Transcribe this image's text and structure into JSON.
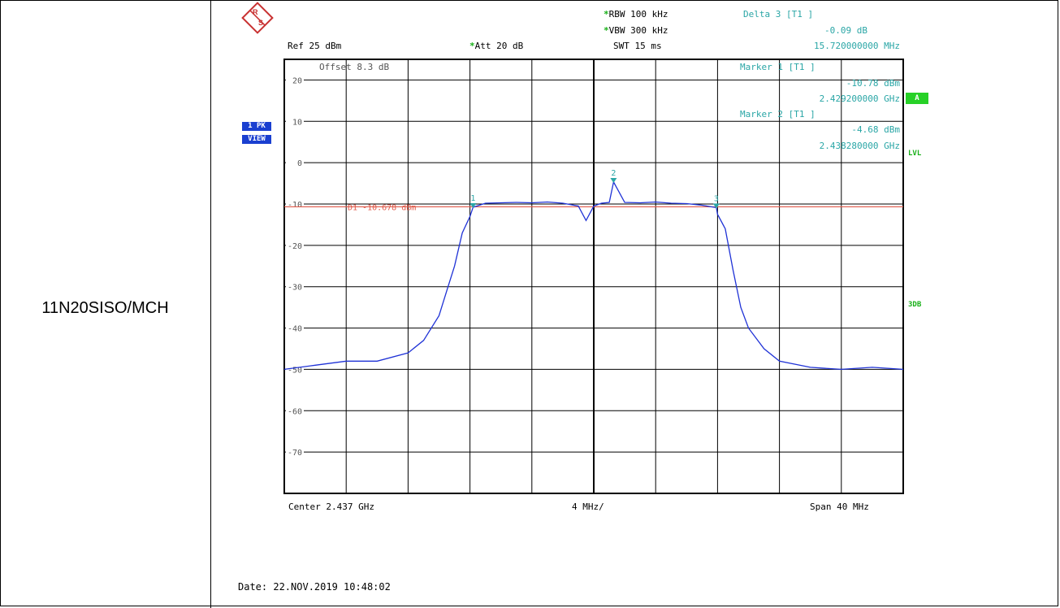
{
  "row_label": "11N20SISO/MCH",
  "header": {
    "rbw": "RBW 100 kHz",
    "vbw": "VBW 300 kHz",
    "swt": "SWT 15 ms",
    "ref": "Ref  25 dBm",
    "att": "Att  20 dB",
    "offset": "Offset  8.3 dB",
    "star": "*"
  },
  "markers": {
    "delta3_title": "Delta 3 [T1 ]",
    "delta3_level": "-0.09 dB",
    "delta3_freq": "15.720000000 MHz",
    "m1_title": "Marker 1 [T1 ]",
    "m1_level": "-10.78 dBm",
    "m1_freq": "2.429200000 GHz",
    "m2_title": "Marker 2 [T1 ]",
    "m2_level": "-4.68 dBm",
    "m2_freq": "2.438280000 GHz",
    "labels": [
      "1",
      "2",
      "3"
    ]
  },
  "side": {
    "pk": "1 PK",
    "view": "VIEW",
    "a": "A",
    "lvl": "LVL",
    "db3": "3DB"
  },
  "footer": {
    "center": "Center 2.437 GHz",
    "div": "4 MHz/",
    "span": "Span 40 MHz",
    "date": "Date: 22.NOV.2019  10:48:02"
  },
  "colors": {
    "trace": "#1f32d6",
    "display_line": "#e05a4a",
    "marker": "#2aa6a6",
    "grid": "#000000"
  },
  "chart_data": {
    "type": "line",
    "title": "",
    "xlabel": "",
    "ylabel": "",
    "x_unit": "GHz",
    "y_unit": "dBm",
    "xlim": [
      2.417,
      2.457
    ],
    "ylim": [
      -80,
      25
    ],
    "y_ticks": [
      20,
      10,
      0,
      -10,
      -20,
      -30,
      -40,
      -50,
      -60,
      -70
    ],
    "display_line": {
      "label": "D1 -10.678 dBm",
      "value": -10.678
    },
    "markers": [
      {
        "label": "1",
        "x": 2.4292,
        "y": -10.78
      },
      {
        "label": "2",
        "x": 2.43828,
        "y": -4.68
      },
      {
        "label": "3",
        "x": 2.44492,
        "y": -10.87
      }
    ],
    "series": [
      {
        "x": [
          2.417,
          2.419,
          2.421,
          2.423,
          2.425,
          2.426,
          2.427,
          2.4275,
          2.428,
          2.4285,
          2.429,
          2.4292,
          2.43,
          2.431,
          2.432,
          2.433,
          2.434,
          2.435,
          2.436,
          2.4365,
          2.437,
          2.4375,
          2.438,
          2.43828,
          2.439,
          2.44,
          2.441,
          2.442,
          2.443,
          2.444,
          2.4445,
          2.44492,
          2.445,
          2.4455,
          2.446,
          2.4465,
          2.447,
          2.448,
          2.449,
          2.451,
          2.453,
          2.455,
          2.457
        ],
        "y": [
          -50,
          -49,
          -48,
          -48,
          -46,
          -43,
          -37,
          -31,
          -25,
          -17,
          -13,
          -10.78,
          -9.8,
          -9.7,
          -9.6,
          -9.7,
          -9.5,
          -9.8,
          -10.5,
          -14,
          -10.5,
          -9.8,
          -9.6,
          -4.68,
          -9.6,
          -9.7,
          -9.5,
          -9.8,
          -9.9,
          -10.3,
          -10.6,
          -10.87,
          -12.5,
          -16,
          -26,
          -35,
          -40,
          -45,
          -48,
          -49.5,
          -50,
          -49.5,
          -50
        ]
      }
    ]
  }
}
